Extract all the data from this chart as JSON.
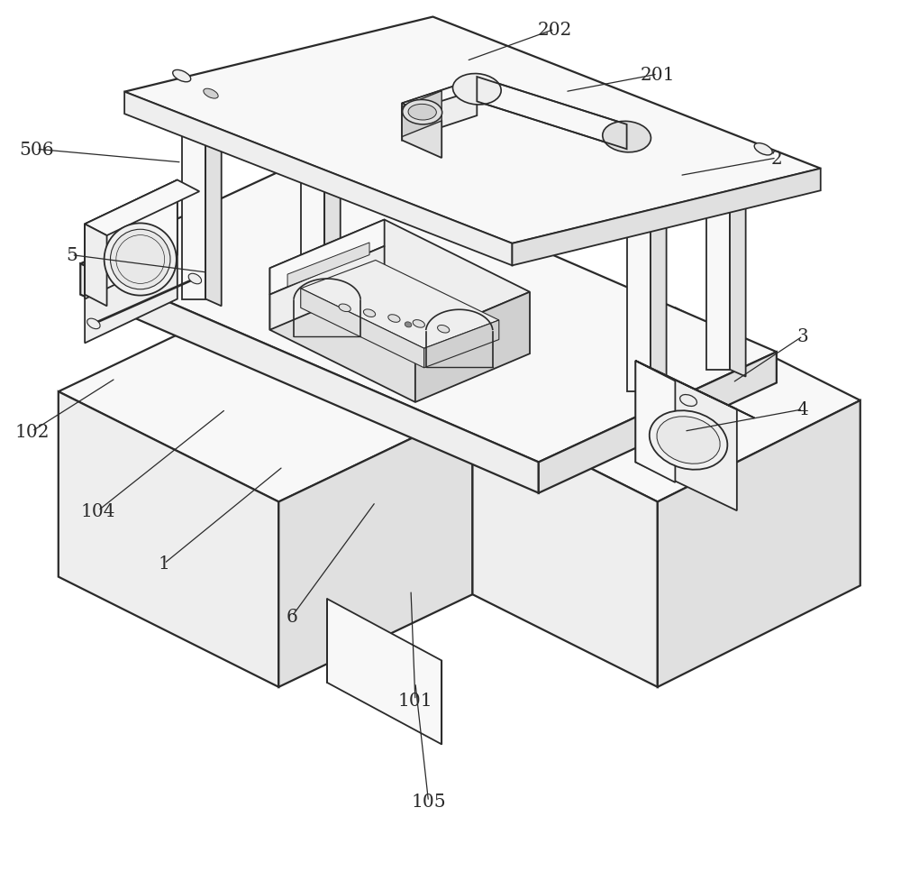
{
  "bg_color": "#ffffff",
  "lc": "#2a2a2a",
  "lw": 1.3,
  "lw_thick": 1.6,
  "fc_light": "#f8f8f8",
  "fc_mid": "#eeeeee",
  "fc_dark": "#e0e0e0",
  "fc_darker": "#d0d0d0",
  "annotations": [
    [
      "202",
      [
        0.518,
        0.93
      ],
      [
        0.618,
        0.966
      ]
    ],
    [
      "201",
      [
        0.63,
        0.895
      ],
      [
        0.735,
        0.915
      ]
    ],
    [
      "2",
      [
        0.76,
        0.8
      ],
      [
        0.87,
        0.82
      ]
    ],
    [
      "3",
      [
        0.82,
        0.565
      ],
      [
        0.9,
        0.618
      ]
    ],
    [
      "4",
      [
        0.765,
        0.51
      ],
      [
        0.9,
        0.535
      ]
    ],
    [
      "5",
      [
        0.225,
        0.69
      ],
      [
        0.07,
        0.71
      ]
    ],
    [
      "506",
      [
        0.195,
        0.815
      ],
      [
        0.03,
        0.83
      ]
    ],
    [
      "102",
      [
        0.12,
        0.57
      ],
      [
        0.025,
        0.51
      ]
    ],
    [
      "104",
      [
        0.245,
        0.535
      ],
      [
        0.1,
        0.42
      ]
    ],
    [
      "1",
      [
        0.31,
        0.47
      ],
      [
        0.175,
        0.36
      ]
    ],
    [
      "6",
      [
        0.415,
        0.43
      ],
      [
        0.32,
        0.3
      ]
    ],
    [
      "101",
      [
        0.455,
        0.33
      ],
      [
        0.46,
        0.205
      ]
    ],
    [
      "105",
      [
        0.46,
        0.225
      ],
      [
        0.475,
        0.09
      ]
    ]
  ]
}
